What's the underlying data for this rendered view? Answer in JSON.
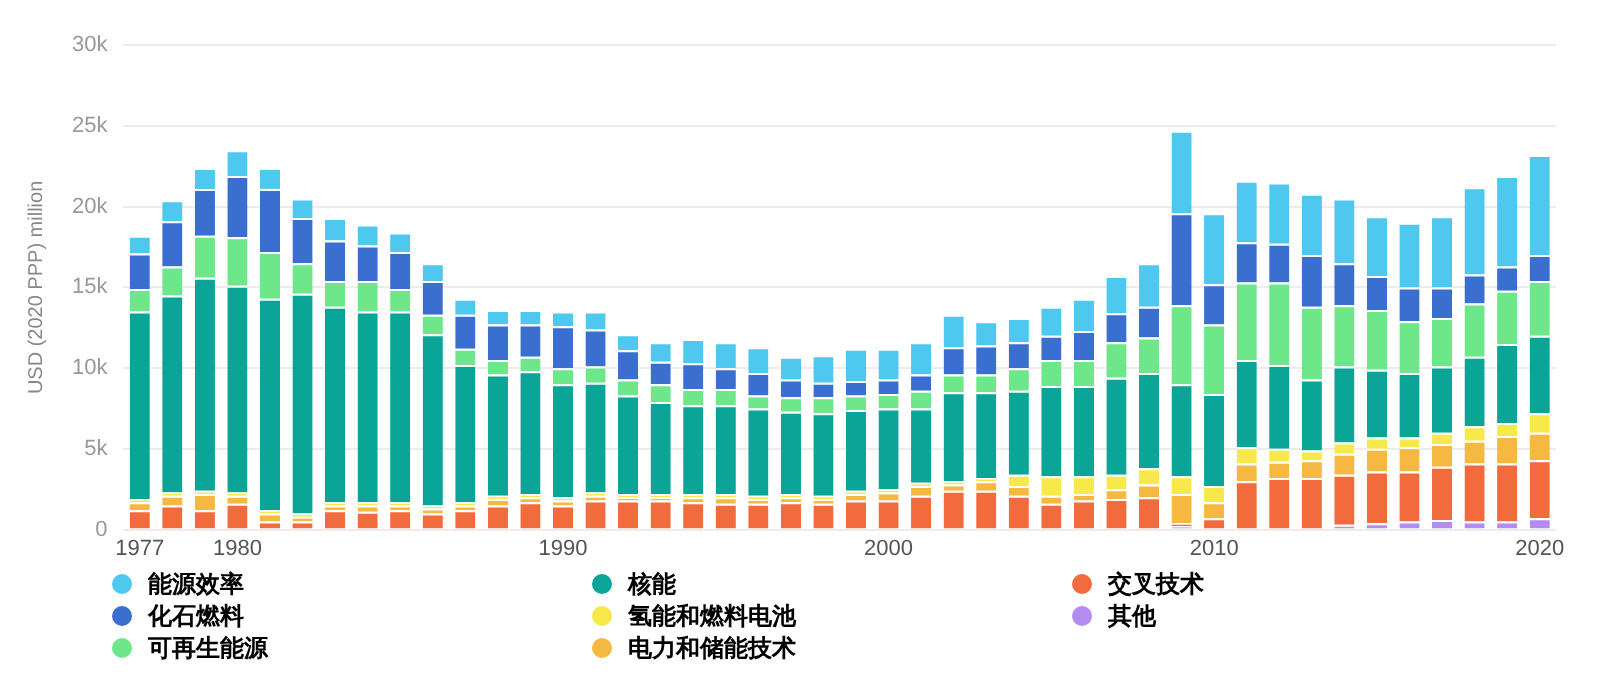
{
  "chart_data": {
    "type": "bar",
    "stacked": true,
    "ylabel": "USD (2020 PPP) million",
    "categories": [
      "1977",
      null,
      null,
      "1980",
      null,
      null,
      null,
      null,
      null,
      null,
      null,
      null,
      null,
      "1990",
      null,
      null,
      null,
      null,
      null,
      null,
      null,
      null,
      null,
      "2000",
      null,
      null,
      null,
      null,
      null,
      null,
      null,
      null,
      null,
      "2010",
      null,
      null,
      null,
      null,
      null,
      null,
      null,
      null,
      null,
      "2020"
    ],
    "ylim": [
      0,
      30000
    ],
    "yticks": [
      {
        "value": 0,
        "label": "0"
      },
      {
        "value": 5000,
        "label": "5k"
      },
      {
        "value": 10000,
        "label": "10k"
      },
      {
        "value": 15000,
        "label": "15k"
      },
      {
        "value": 20000,
        "label": "20k"
      },
      {
        "value": 25000,
        "label": "25k"
      },
      {
        "value": 30000,
        "label": "30k"
      }
    ],
    "grid": "y",
    "legend": "bottom",
    "series": [
      {
        "name": "其他",
        "color": "#b28cf0",
        "values": [
          0,
          0,
          0,
          0,
          0,
          0,
          0,
          0,
          0,
          0,
          0,
          0,
          0,
          0,
          0,
          0,
          0,
          0,
          0,
          0,
          0,
          0,
          0,
          0,
          0,
          0,
          0,
          0,
          0,
          0,
          0,
          0,
          200,
          0,
          0,
          0,
          0,
          300,
          400,
          500,
          600,
          500,
          500,
          700
        ]
      },
      {
        "name": "交叉技术",
        "color": "#f26b3c",
        "values": [
          1200,
          1500,
          1200,
          1600,
          500,
          500,
          1200,
          1100,
          1200,
          1000,
          1200,
          1500,
          1700,
          1500,
          1800,
          1800,
          1800,
          1700,
          1600,
          1600,
          1700,
          1600,
          1800,
          1800,
          2100,
          2400,
          2400,
          2100,
          1600,
          1800,
          1900,
          2000,
          200,
          700,
          3000,
          3200,
          3200,
          3100,
          3200,
          3100,
          3300,
          3600,
          3600,
          3600
        ]
      },
      {
        "name": "电力和储能技术",
        "color": "#f5b942",
        "values": [
          500,
          600,
          1000,
          500,
          500,
          300,
          300,
          400,
          300,
          300,
          300,
          400,
          300,
          300,
          300,
          200,
          200,
          300,
          400,
          300,
          300,
          300,
          400,
          500,
          600,
          400,
          600,
          600,
          500,
          400,
          600,
          800,
          1800,
          1000,
          1100,
          1000,
          1100,
          1300,
          1400,
          1500,
          1400,
          1400,
          1700,
          1700
        ]
      },
      {
        "name": "氢能和燃料电池",
        "color": "#f7e94a",
        "values": [
          200,
          200,
          200,
          200,
          200,
          200,
          200,
          200,
          200,
          200,
          200,
          200,
          200,
          200,
          200,
          200,
          200,
          200,
          200,
          200,
          200,
          200,
          200,
          200,
          200,
          200,
          200,
          700,
          1200,
          1100,
          900,
          1000,
          1100,
          1000,
          1000,
          800,
          600,
          700,
          700,
          600,
          700,
          900,
          800,
          1200
        ]
      },
      {
        "name": "核能",
        "color": "#0aa596",
        "values": [
          11600,
          12200,
          13200,
          12800,
          13100,
          13600,
          12100,
          11800,
          11800,
          10600,
          8500,
          7500,
          7600,
          7000,
          6800,
          6100,
          5700,
          5500,
          5500,
          5400,
          5100,
          5100,
          5000,
          5000,
          4600,
          5500,
          5300,
          5200,
          5600,
          5600,
          6000,
          5900,
          5700,
          5700,
          5400,
          5200,
          4400,
          4700,
          4200,
          4000,
          4100,
          4300,
          4900,
          4800
        ]
      },
      {
        "name": "可再生能源",
        "color": "#6ee68a",
        "values": [
          1400,
          1800,
          2600,
          3000,
          2900,
          1900,
          1600,
          1900,
          1400,
          1200,
          1000,
          900,
          900,
          1000,
          1000,
          1000,
          1100,
          1000,
          1000,
          800,
          900,
          1000,
          900,
          900,
          1100,
          1100,
          1100,
          1400,
          1600,
          1600,
          2200,
          2200,
          4900,
          4300,
          4800,
          5100,
          4500,
          3800,
          3700,
          3200,
          3000,
          3300,
          3300,
          3400
        ]
      },
      {
        "name": "化石燃料",
        "color": "#3a6fcf",
        "values": [
          2200,
          2800,
          2900,
          3800,
          3900,
          2800,
          2500,
          2200,
          2300,
          2100,
          2100,
          2200,
          2000,
          2600,
          2300,
          1800,
          1400,
          1600,
          1300,
          1400,
          1100,
          900,
          900,
          900,
          1000,
          1700,
          1800,
          1600,
          1500,
          1800,
          1800,
          1900,
          5700,
          2500,
          2500,
          2400,
          3200,
          2600,
          2100,
          2100,
          1900,
          1800,
          1500,
          1600
        ]
      },
      {
        "name": "能源效率",
        "color": "#4fc8f0",
        "values": [
          1100,
          1300,
          1300,
          1600,
          1300,
          1200,
          1400,
          1300,
          1200,
          1100,
          1000,
          900,
          900,
          900,
          1100,
          1000,
          1200,
          1500,
          1600,
          1600,
          1400,
          1700,
          2000,
          1900,
          2000,
          2000,
          1500,
          1500,
          1800,
          2000,
          2300,
          2700,
          5100,
          4400,
          3800,
          3800,
          3800,
          4000,
          3700,
          4000,
          4400,
          5400,
          5600,
          6200
        ]
      }
    ]
  }
}
